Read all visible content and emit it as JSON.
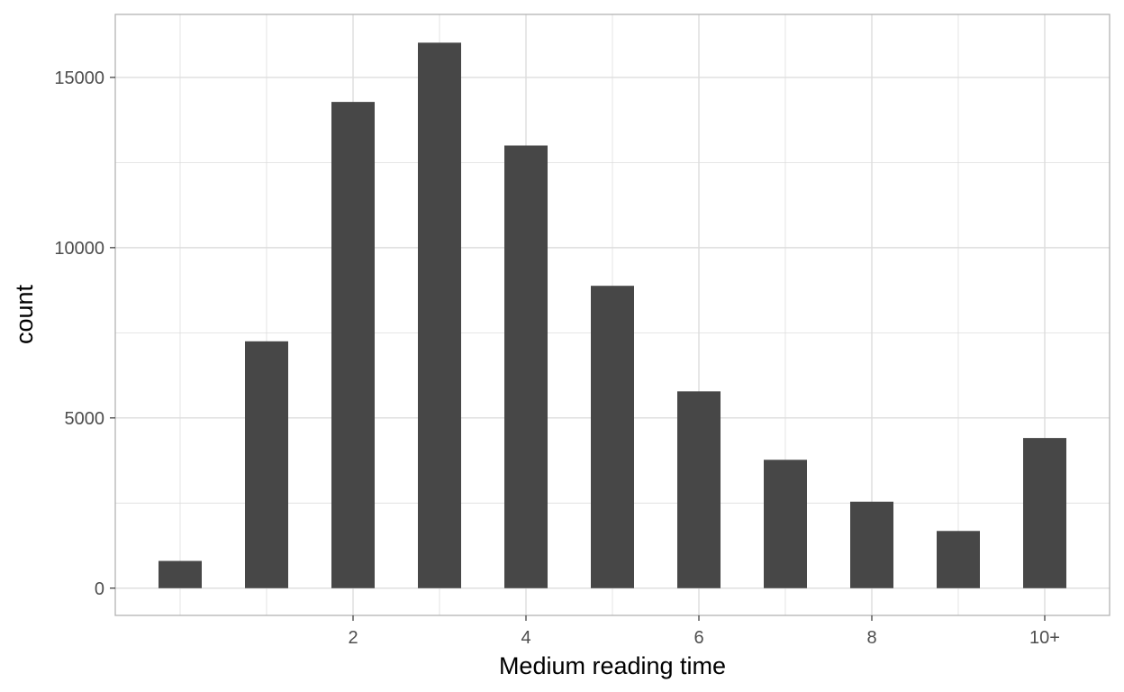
{
  "chart_data": {
    "type": "bar",
    "categories": [
      "",
      "",
      "2",
      "",
      "4",
      "",
      "6",
      "",
      "8",
      "",
      "10+"
    ],
    "x": [
      0,
      1,
      2,
      3,
      4,
      5,
      6,
      7,
      8,
      9,
      10
    ],
    "values": [
      800,
      7250,
      14280,
      16020,
      13000,
      8880,
      5780,
      3770,
      2540,
      1680,
      4410
    ],
    "xlabel": "Medium reading time",
    "ylabel": "count",
    "ylim": [
      -800,
      16850
    ],
    "yticks": [
      0,
      5000,
      10000,
      15000
    ],
    "xticks": [
      {
        "x": 2,
        "label": "2"
      },
      {
        "x": 4,
        "label": "4"
      },
      {
        "x": 6,
        "label": "6"
      },
      {
        "x": 8,
        "label": "8"
      },
      {
        "x": 10,
        "label": "10+"
      }
    ],
    "grid": true,
    "colors": {
      "bar": "#474747",
      "grid": "#dddddd",
      "border": "#b3b3b3"
    }
  }
}
